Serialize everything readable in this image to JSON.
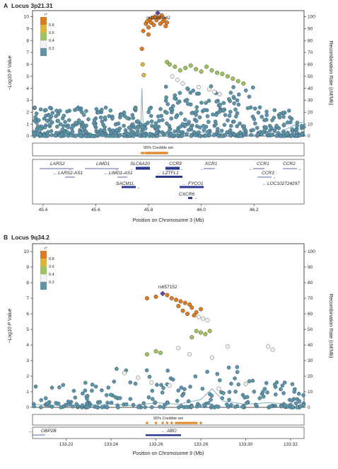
{
  "colors": {
    "point_default": "#5f93a8",
    "r2_bins": [
      "#5f93a8",
      "#f2f2f2",
      "#9dc35a",
      "#e1b533",
      "#df7a1f"
    ],
    "lead_snp": "#5b4aa0",
    "recomb_line": "#7fb0c0",
    "gene_block": "#2b3a8c",
    "credible_dot": "#e08a2b"
  },
  "panels": [
    {
      "label": "A",
      "title": "Locus 3p21.31",
      "lead_snp": "rs11385942",
      "credible_set_label": "95% Credible set",
      "legend": {
        "title": "r²",
        "ticks": [
          "0.8",
          "0.6",
          "0.4",
          "0.2"
        ]
      },
      "genes": [
        {
          "name": "LARS2",
          "dir": "right"
        },
        {
          "name": "LIMD1",
          "dir": "right"
        },
        {
          "name": "SLC6A20",
          "dir": "left"
        },
        {
          "name": "CCR9",
          "dir": "right"
        },
        {
          "name": "XCR1",
          "dir": "left"
        },
        {
          "name": "CCR1",
          "dir": "left"
        },
        {
          "name": "CCR2",
          "dir": "right"
        },
        {
          "name": "LARS2-AS1",
          "dir": "left"
        },
        {
          "name": "LIMD1-AS1",
          "dir": "left"
        },
        {
          "name": "LZTFL1",
          "dir": "left"
        },
        {
          "name": "CCR3",
          "dir": "right"
        },
        {
          "name": "SACM1L",
          "dir": "right"
        },
        {
          "name": "FYCO1",
          "dir": "left"
        },
        {
          "name": "LOC102724297",
          "dir": "left"
        },
        {
          "name": "CXCR6",
          "dir": "right"
        }
      ]
    },
    {
      "label": "B",
      "title": "Locus 9q34.2",
      "lead_snp": "rs657152",
      "credible_set_label": "95% Credible set",
      "legend": {
        "title": "r²",
        "ticks": [
          "0.8",
          "0.6",
          "0.4",
          "0.2"
        ]
      },
      "genes": [
        {
          "name": "OBP2B",
          "dir": "left"
        },
        {
          "name": "ABO",
          "dir": "left"
        }
      ]
    }
  ],
  "chart_data": [
    {
      "type": "scatter",
      "title": "Locus 3p21.31",
      "xlabel": "Position on Chromosome 3 (Mb)",
      "ylabel": "−Log10 P Value",
      "ylabel_right": "Recombination Rate (cM/Mb)",
      "xlim": [
        45.36,
        46.39
      ],
      "ylim": [
        0,
        10.5
      ],
      "y2lim": [
        0,
        105
      ],
      "xticks": [
        45.4,
        45.6,
        45.8,
        46.0,
        46.2
      ],
      "xtick_labels": [
        "45.4",
        "45.6",
        "45.8",
        "46.0",
        "46.2"
      ],
      "yticks": [
        0,
        1,
        2,
        3,
        4,
        5,
        6,
        7,
        8,
        9,
        10
      ],
      "ytick_labels": [
        "0",
        "1",
        "2",
        "3",
        "4",
        "5",
        "6",
        "7",
        "8",
        "9",
        "10"
      ],
      "y2ticks": [
        0,
        10,
        20,
        30,
        40,
        50,
        60,
        70,
        80,
        90,
        100
      ],
      "y2tick_labels": [
        "0",
        "10",
        "20",
        "30",
        "40",
        "50",
        "60",
        "70",
        "80",
        "90",
        "100"
      ],
      "lead_snp": {
        "name": "rs11385942",
        "x": 45.835,
        "y": 10.3
      },
      "highlight_points": [
        {
          "x": 45.79,
          "y": 9.4,
          "r2_bin": 4
        },
        {
          "x": 45.795,
          "y": 9.6,
          "r2_bin": 4
        },
        {
          "x": 45.8,
          "y": 9.1,
          "r2_bin": 4
        },
        {
          "x": 45.805,
          "y": 9.8,
          "r2_bin": 4
        },
        {
          "x": 45.81,
          "y": 9.5,
          "r2_bin": 4
        },
        {
          "x": 45.815,
          "y": 9.9,
          "r2_bin": 4
        },
        {
          "x": 45.82,
          "y": 9.3,
          "r2_bin": 4
        },
        {
          "x": 45.825,
          "y": 10.0,
          "r2_bin": 4
        },
        {
          "x": 45.83,
          "y": 9.7,
          "r2_bin": 4
        },
        {
          "x": 45.84,
          "y": 9.9,
          "r2_bin": 4
        },
        {
          "x": 45.845,
          "y": 9.4,
          "r2_bin": 4
        },
        {
          "x": 45.85,
          "y": 10.1,
          "r2_bin": 4
        },
        {
          "x": 45.855,
          "y": 9.6,
          "r2_bin": 4
        },
        {
          "x": 45.86,
          "y": 9.8,
          "r2_bin": 4
        },
        {
          "x": 45.865,
          "y": 9.2,
          "r2_bin": 4
        },
        {
          "x": 45.87,
          "y": 9.5,
          "r2_bin": 4
        },
        {
          "x": 45.78,
          "y": 8.8,
          "r2_bin": 4
        },
        {
          "x": 45.8,
          "y": 8.5,
          "r2_bin": 4
        },
        {
          "x": 45.775,
          "y": 7.3,
          "r2_bin": 4
        },
        {
          "x": 45.778,
          "y": 6.0,
          "r2_bin": 3
        },
        {
          "x": 45.782,
          "y": 5.1,
          "r2_bin": 3
        },
        {
          "x": 45.87,
          "y": 6.2,
          "r2_bin": 2
        },
        {
          "x": 45.88,
          "y": 6.0,
          "r2_bin": 2
        },
        {
          "x": 45.9,
          "y": 5.8,
          "r2_bin": 2
        },
        {
          "x": 45.92,
          "y": 5.5,
          "r2_bin": 2
        },
        {
          "x": 45.94,
          "y": 5.7,
          "r2_bin": 2
        },
        {
          "x": 45.96,
          "y": 5.9,
          "r2_bin": 2
        },
        {
          "x": 45.98,
          "y": 5.6,
          "r2_bin": 2
        },
        {
          "x": 46.0,
          "y": 5.4,
          "r2_bin": 2
        },
        {
          "x": 46.02,
          "y": 5.8,
          "r2_bin": 2
        },
        {
          "x": 46.04,
          "y": 5.5,
          "r2_bin": 2
        },
        {
          "x": 46.06,
          "y": 5.3,
          "r2_bin": 2
        },
        {
          "x": 46.08,
          "y": 5.2,
          "r2_bin": 2
        },
        {
          "x": 46.1,
          "y": 5.0,
          "r2_bin": 2
        },
        {
          "x": 46.12,
          "y": 4.8,
          "r2_bin": 2
        },
        {
          "x": 46.14,
          "y": 4.6,
          "r2_bin": 2
        },
        {
          "x": 46.16,
          "y": 4.4,
          "r2_bin": 2
        },
        {
          "x": 45.89,
          "y": 5.0,
          "r2_bin": 1
        },
        {
          "x": 45.91,
          "y": 4.7,
          "r2_bin": 1
        },
        {
          "x": 45.93,
          "y": 4.4,
          "r2_bin": 1
        },
        {
          "x": 45.99,
          "y": 4.1,
          "r2_bin": 1
        },
        {
          "x": 46.03,
          "y": 3.9,
          "r2_bin": 1
        },
        {
          "x": 46.05,
          "y": 3.7,
          "r2_bin": 1
        },
        {
          "x": 46.07,
          "y": 3.5,
          "r2_bin": 1
        }
      ],
      "recombination": {
        "x": [
          45.36,
          45.4,
          45.5,
          45.6,
          45.7,
          45.77,
          45.775,
          45.78,
          45.8,
          45.9,
          46.0,
          46.1,
          46.2,
          46.3,
          46.36,
          46.39
        ],
        "y": [
          2,
          1,
          2,
          1,
          2,
          3,
          40,
          5,
          2,
          1,
          3,
          2,
          1,
          3,
          10,
          12
        ]
      }
    },
    {
      "type": "scatter",
      "title": "Locus 9q34.2",
      "xlabel": "Position on Chromosome 9 (Mb)",
      "ylabel": "−Log10 P Value",
      "ylabel_right": "Recombination Rate (cM/Mb)",
      "xlim": [
        133.205,
        133.326
      ],
      "ylim": [
        0,
        10.5
      ],
      "y2lim": [
        0,
        105
      ],
      "xticks": [
        133.22,
        133.24,
        133.26,
        133.28,
        133.3,
        133.32
      ],
      "xtick_labels": [
        "133.22",
        "133.24",
        "133.26",
        "133.28",
        "133.30",
        "133.32"
      ],
      "yticks": [
        0,
        1,
        2,
        3,
        4,
        5,
        6,
        7,
        8,
        9,
        10
      ],
      "ytick_labels": [
        "0",
        "1",
        "2",
        "3",
        "4",
        "5",
        "6",
        "7",
        "8",
        "9",
        "10"
      ],
      "y2ticks": [
        0,
        10,
        20,
        30,
        40,
        50,
        60,
        70,
        80,
        90,
        100
      ],
      "y2tick_labels": [
        "0",
        "10",
        "20",
        "30",
        "40",
        "50",
        "60",
        "70",
        "80",
        "90",
        "100"
      ],
      "lead_snp": {
        "name": "rs657152",
        "x": 133.263,
        "y": 7.3
      },
      "highlight_points": [
        {
          "x": 133.256,
          "y": 7.0,
          "r2_bin": 4
        },
        {
          "x": 133.26,
          "y": 7.1,
          "r2_bin": 4
        },
        {
          "x": 133.265,
          "y": 7.2,
          "r2_bin": 4
        },
        {
          "x": 133.267,
          "y": 7.0,
          "r2_bin": 4
        },
        {
          "x": 133.269,
          "y": 6.9,
          "r2_bin": 4
        },
        {
          "x": 133.271,
          "y": 6.8,
          "r2_bin": 4
        },
        {
          "x": 133.273,
          "y": 6.7,
          "r2_bin": 4
        },
        {
          "x": 133.275,
          "y": 6.6,
          "r2_bin": 4
        },
        {
          "x": 133.27,
          "y": 6.5,
          "r2_bin": 4
        },
        {
          "x": 133.276,
          "y": 6.4,
          "r2_bin": 4
        },
        {
          "x": 133.272,
          "y": 6.2,
          "r2_bin": 4
        },
        {
          "x": 133.278,
          "y": 6.1,
          "r2_bin": 4
        },
        {
          "x": 133.274,
          "y": 6.0,
          "r2_bin": 4
        },
        {
          "x": 133.277,
          "y": 5.9,
          "r2_bin": 4
        },
        {
          "x": 133.28,
          "y": 6.3,
          "r2_bin": 4
        },
        {
          "x": 133.279,
          "y": 5.8,
          "r2_bin": 1
        },
        {
          "x": 133.281,
          "y": 5.7,
          "r2_bin": 1
        },
        {
          "x": 133.283,
          "y": 5.6,
          "r2_bin": 1
        },
        {
          "x": 133.278,
          "y": 4.9,
          "r2_bin": 2
        },
        {
          "x": 133.28,
          "y": 4.8,
          "r2_bin": 2
        },
        {
          "x": 133.282,
          "y": 4.7,
          "r2_bin": 2
        },
        {
          "x": 133.284,
          "y": 4.9,
          "r2_bin": 2
        },
        {
          "x": 133.276,
          "y": 4.5,
          "r2_bin": 2
        },
        {
          "x": 133.26,
          "y": 3.6,
          "r2_bin": 2
        },
        {
          "x": 133.256,
          "y": 3.4,
          "r2_bin": 2
        },
        {
          "x": 133.262,
          "y": 3.5,
          "r2_bin": 2
        },
        {
          "x": 133.27,
          "y": 3.8,
          "r2_bin": 1
        },
        {
          "x": 133.275,
          "y": 3.4,
          "r2_bin": 1
        },
        {
          "x": 133.285,
          "y": 3.2,
          "r2_bin": 1
        },
        {
          "x": 133.292,
          "y": 3.9,
          "r2_bin": 1
        },
        {
          "x": 133.31,
          "y": 3.9,
          "r2_bin": 1
        },
        {
          "x": 133.312,
          "y": 3.7,
          "r2_bin": 1
        },
        {
          "x": 133.246,
          "y": 2.2,
          "r2_bin": 1
        },
        {
          "x": 133.252,
          "y": 1.9,
          "r2_bin": 1
        },
        {
          "x": 133.258,
          "y": 1.6,
          "r2_bin": 1
        },
        {
          "x": 133.266,
          "y": 1.4,
          "r2_bin": 1
        },
        {
          "x": 133.288,
          "y": 1.2,
          "r2_bin": 1
        },
        {
          "x": 133.3,
          "y": 1.5,
          "r2_bin": 1
        }
      ],
      "recombination": {
        "x": [
          133.205,
          133.22,
          133.24,
          133.25,
          133.26,
          133.27,
          133.28,
          133.285,
          133.29,
          133.3,
          133.31,
          133.32,
          133.326
        ],
        "y": [
          2,
          1,
          2,
          1,
          3,
          2,
          5,
          12,
          4,
          2,
          3,
          2,
          3
        ]
      }
    }
  ]
}
